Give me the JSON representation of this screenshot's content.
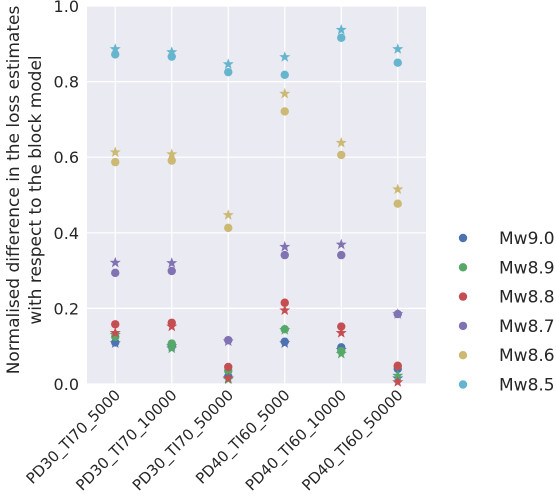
{
  "chart_data": {
    "type": "scatter",
    "ylabel_lines": [
      "Normalised difference in the loss estimates",
      "with respect to the block model"
    ],
    "xlabel": "",
    "ylim": [
      0.0,
      1.0
    ],
    "y_ticks": [
      "0.0",
      "0.2",
      "0.4",
      "0.6",
      "0.8",
      "1.0"
    ],
    "categories": [
      "PD30_TI70_5000",
      "PD30_TI70_10000",
      "PD30_TI70_50000",
      "PD40_TI60_5000",
      "PD40_TI60_10000",
      "PD40_TI60_50000"
    ],
    "grid": true,
    "legend_position": "right",
    "marker_note": "circle and star markers per series",
    "series": [
      {
        "name": "Mw9.0",
        "color": "#4c72b0",
        "circle": [
          0.11,
          0.1,
          0.02,
          0.112,
          0.097,
          0.04
        ],
        "star": [
          0.108,
          0.1,
          0.015,
          0.108,
          0.09,
          0.015
        ]
      },
      {
        "name": "Mw8.9",
        "color": "#55a868",
        "circle": [
          0.125,
          0.107,
          0.035,
          0.145,
          0.087,
          0.048
        ],
        "star": [
          0.13,
          0.094,
          0.012,
          0.143,
          0.08,
          0.022
        ]
      },
      {
        "name": "Mw8.8",
        "color": "#c44e52",
        "circle": [
          0.158,
          0.162,
          0.045,
          0.215,
          0.152,
          0.048
        ],
        "star": [
          0.135,
          0.152,
          0.015,
          0.195,
          0.135,
          0.005
        ]
      },
      {
        "name": "Mw8.7",
        "color": "#8172b2",
        "circle": [
          0.294,
          0.299,
          0.116,
          0.341,
          0.341,
          0.185
        ],
        "star": [
          0.321,
          0.32,
          0.113,
          0.363,
          0.369,
          0.185
        ]
      },
      {
        "name": "Mw8.6",
        "color": "#ccb974",
        "circle": [
          0.587,
          0.591,
          0.413,
          0.721,
          0.606,
          0.477
        ],
        "star": [
          0.613,
          0.608,
          0.447,
          0.768,
          0.638,
          0.515
        ]
      },
      {
        "name": "Mw8.5",
        "color": "#64b5cd",
        "circle": [
          0.872,
          0.866,
          0.825,
          0.818,
          0.916,
          0.85
        ],
        "star": [
          0.886,
          0.878,
          0.846,
          0.865,
          0.937,
          0.886
        ]
      }
    ]
  }
}
